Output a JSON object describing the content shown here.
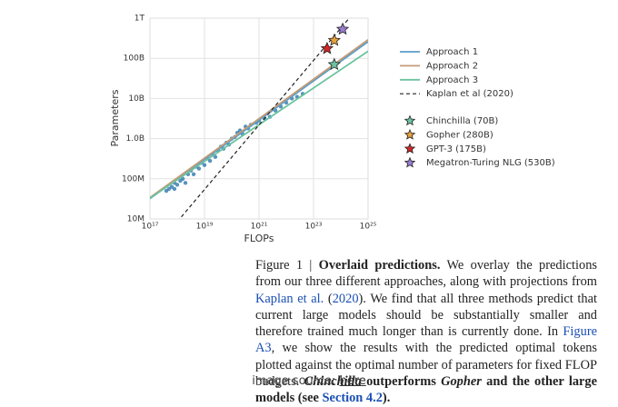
{
  "chart_data": {
    "type": "line",
    "xlabel": "FLOPs",
    "ylabel": "Parameters",
    "xscale": "log",
    "yscale": "log",
    "xlim": [
      1e+17,
      1e+25
    ],
    "ylim": [
      10000000.0,
      1000000000000.0
    ],
    "grid": true,
    "xticks": [
      {
        "value": 1e+17,
        "label": "10¹⁷"
      },
      {
        "value": 1e+19,
        "label": "10¹⁹"
      },
      {
        "value": 1e+21,
        "label": "10²¹"
      },
      {
        "value": 1e+23,
        "label": "10²³"
      },
      {
        "value": 1e+25,
        "label": "10²⁵"
      }
    ],
    "yticks": [
      {
        "value": 10000000.0,
        "label": "10M"
      },
      {
        "value": 100000000.0,
        "label": "100M"
      },
      {
        "value": 1000000000.0,
        "label": "1.0B"
      },
      {
        "value": 10000000000.0,
        "label": "10B"
      },
      {
        "value": 100000000000.0,
        "label": "100B"
      },
      {
        "value": 1000000000000.0,
        "label": "1T"
      }
    ],
    "series": [
      {
        "type": "scatter",
        "color": "#3b80b3",
        "x": [
          4e+17,
          5e+17,
          6.3e+17,
          7.9e+17,
          7.9e+17,
          1e+18,
          1.3e+18,
          1.6e+18,
          2e+18,
          2.5e+18,
          3.2e+18,
          4e+18,
          5e+18,
          6.3e+18,
          7.9e+18,
          1e+19,
          1.3e+19,
          1.6e+19,
          2e+19,
          2.5e+19,
          3.2e+19,
          4e+19,
          5e+19,
          6.3e+19,
          7.9e+19,
          1e+20,
          1.3e+20,
          1.6e+20,
          2e+20,
          2.5e+20,
          3.2e+20,
          4e+20,
          5e+20,
          7.9e+20,
          1e+21,
          1.6e+21,
          2.5e+21,
          4e+21,
          6.3e+21,
          1e+22,
          1.6e+22,
          2.5e+22,
          4e+22
        ],
        "values": [
          50000000.0,
          56000000.0,
          63000000.0,
          56000000.0,
          79000000.0,
          71000000.0,
          89000000.0,
          100000000.0,
          79000000.0,
          130000000.0,
          160000000.0,
          130000000.0,
          200000000.0,
          180000000.0,
          250000000.0,
          220000000.0,
          320000000.0,
          280000000.0,
          400000000.0,
          350000000.0,
          500000000.0,
          630000000.0,
          560000000.0,
          790000000.0,
          710000000.0,
          1000000000.0,
          1100000000.0,
          1400000000.0,
          1600000000.0,
          1300000000.0,
          2000000000.0,
          1800000000.0,
          2200000000.0,
          2500000000.0,
          2800000000.0,
          3200000000.0,
          3500000000.0,
          5000000000.0,
          6300000000.0,
          7900000000.0,
          10000000000.0,
          11000000000.0,
          13000000000.0
        ]
      },
      {
        "type": "line",
        "name": "Approach 1",
        "color": "#5b9ec9",
        "x": [
          1e+17,
          1e+25
        ],
        "values": [
          32000000.0,
          260000000000.0
        ]
      },
      {
        "type": "line",
        "name": "Approach 2",
        "color": "#c39b77",
        "x": [
          1e+17,
          1e+25
        ],
        "values": [
          34000000.0,
          290000000000.0
        ]
      },
      {
        "type": "line",
        "name": "Approach 3",
        "color": "#6dc3a0",
        "x": [
          1e+17,
          1e+25
        ],
        "values": [
          33000000.0,
          150000000000.0
        ]
      },
      {
        "type": "line",
        "name": "Kaplan et al (2020)",
        "color": "#222222",
        "dash": true,
        "x": [
          1e+18,
          1e+25
        ],
        "values": [
          8500000.0,
          3600000000000.0
        ]
      },
      {
        "type": "star",
        "name": "Chinchilla (70B)",
        "color": "#6dc3a0",
        "x": [
          5.76e+23
        ],
        "values": [
          70000000000.0
        ]
      },
      {
        "type": "star",
        "name": "Gopher (280B)",
        "color": "#e8a13a",
        "x": [
          5.76e+23
        ],
        "values": [
          280000000000.0
        ]
      },
      {
        "type": "star",
        "name": "GPT-3 (175B)",
        "color": "#d62728",
        "x": [
          3.14e+23
        ],
        "values": [
          175000000000.0
        ]
      },
      {
        "type": "star",
        "name": "Megatron-Turing NLG (530B)",
        "color": "#9a7fd1",
        "x": [
          1.17e+24
        ],
        "values": [
          530000000000.0
        ]
      }
    ]
  },
  "caption": {
    "segments": [
      {
        "text": "Figure 1 | ",
        "style": "plain"
      },
      {
        "text": "Overlaid predictions.",
        "style": "bold"
      },
      {
        "text": " We overlay the predictions from our three different approaches, along with projections from ",
        "style": "plain"
      },
      {
        "text": "Kaplan et al.",
        "style": "link"
      },
      {
        "text": " (",
        "style": "plain"
      },
      {
        "text": "2020",
        "style": "link"
      },
      {
        "text": "). We find that all three methods predict that current large models should be substantially smaller and therefore trained much longer than is currently done. In ",
        "style": "plain"
      },
      {
        "text": "Figure A3",
        "style": "link"
      },
      {
        "text": ", we show the results with the predicted optimal tokens plotted against the optimal number of parameters for fixed FLOP budgets. ",
        "style": "plain"
      },
      {
        "text": "Chinchilla",
        "style": "bold-italic"
      },
      {
        "text": " outperforms ",
        "style": "bold"
      },
      {
        "text": "Gopher",
        "style": "bold-italic"
      },
      {
        "text": " and the other large models (see ",
        "style": "bold"
      },
      {
        "text": "Section 4.2",
        "style": "bold-link"
      },
      {
        "text": ").",
        "style": "bold"
      }
    ]
  },
  "source": {
    "label": "image source:",
    "link": "here"
  }
}
